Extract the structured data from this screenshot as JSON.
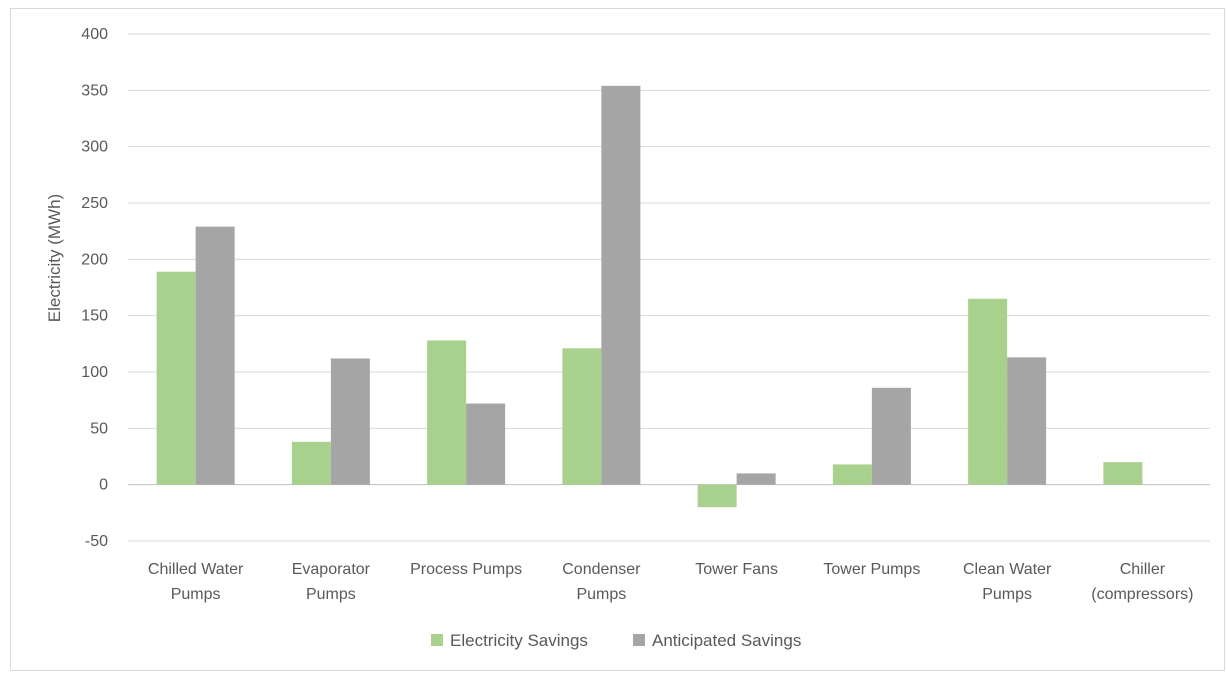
{
  "chart_data": {
    "type": "bar",
    "title": "",
    "xlabel": "",
    "ylabel": "Electricity (MWh)",
    "ylim": [
      -50,
      400
    ],
    "yticks": [
      -50,
      0,
      50,
      100,
      150,
      200,
      250,
      300,
      350,
      400
    ],
    "grid": true,
    "legend_position": "bottom",
    "categories": [
      [
        "Chilled Water",
        "Pumps"
      ],
      [
        "Evaporator",
        "Pumps"
      ],
      [
        "Process Pumps"
      ],
      [
        "Condenser",
        "Pumps"
      ],
      [
        "Tower Fans"
      ],
      [
        "Tower Pumps"
      ],
      [
        "Clean Water",
        "Pumps"
      ],
      [
        "Chiller",
        "(compressors)"
      ]
    ],
    "series": [
      {
        "name": "Electricity Savings",
        "color": "#a9d18e",
        "values": [
          189,
          38,
          128,
          121,
          -20,
          18,
          165,
          20
        ]
      },
      {
        "name": "Anticipated Savings",
        "color": "#a5a5a5",
        "values": [
          229,
          112,
          72,
          354,
          10,
          86,
          113,
          0
        ]
      }
    ]
  }
}
